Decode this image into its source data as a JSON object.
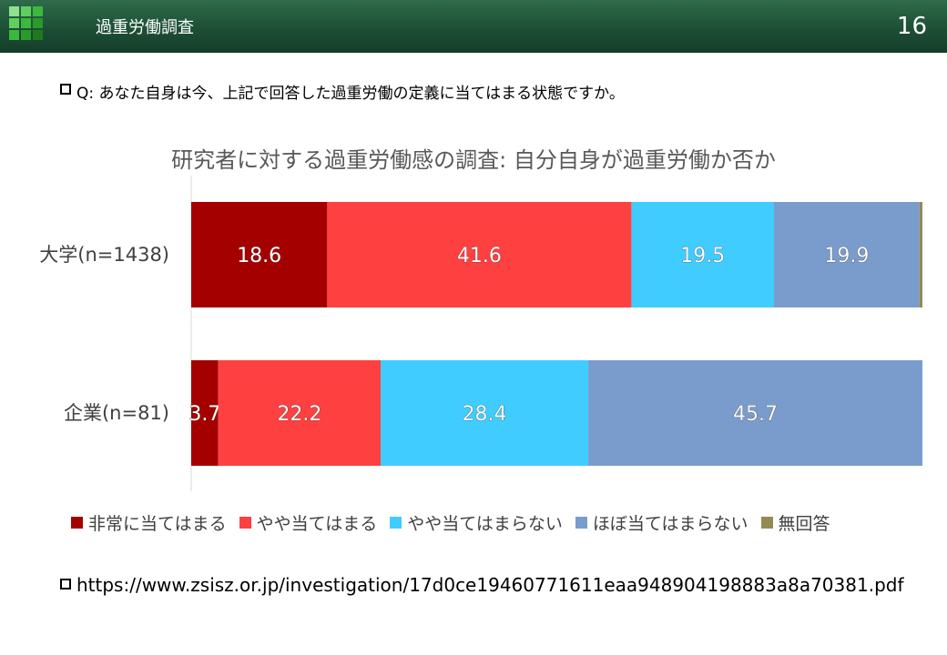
{
  "header": {
    "title": "過重労働調査",
    "page_number": "16",
    "logo_icon": "green-grid-logo-icon"
  },
  "question": {
    "text": "Q: あなた自身は今、上記で回答した過重労働の定義に当てはまる状態ですか。"
  },
  "colors": {
    "header_bg": "#1d4f35",
    "series": [
      "#a50000",
      "#ff4040",
      "#40ccff",
      "#7a9ccc",
      "#948a54"
    ]
  },
  "chart_data": {
    "type": "bar",
    "orientation": "horizontal",
    "stacked": true,
    "title": "研究者に対する過重労働感の調査: 自分自身が過重労働か否か",
    "categories": [
      "大学(n=1438)",
      "企業(n=81)"
    ],
    "series": [
      {
        "name": "非常に当てはまる",
        "values": [
          18.6,
          3.7
        ]
      },
      {
        "name": "やや当てはまる",
        "values": [
          41.6,
          22.2
        ]
      },
      {
        "name": "やや当てはまらない",
        "values": [
          19.5,
          28.4
        ]
      },
      {
        "name": "ほぼ当てはまらない",
        "values": [
          19.9,
          45.7
        ]
      },
      {
        "name": "無回答",
        "values": [
          0.4,
          0.0
        ]
      }
    ],
    "data_labels": [
      [
        "18.6",
        "41.6",
        "19.5",
        "19.9",
        ""
      ],
      [
        "3.7",
        "22.2",
        "28.4",
        "45.7",
        ""
      ]
    ],
    "xlim": [
      0,
      100
    ],
    "legend_position": "bottom",
    "grid": false
  },
  "source": {
    "text": "https://www.zsisz.or.jp/investigation/17d0ce19460771611eaa948904198883a8a70381.pdf"
  }
}
